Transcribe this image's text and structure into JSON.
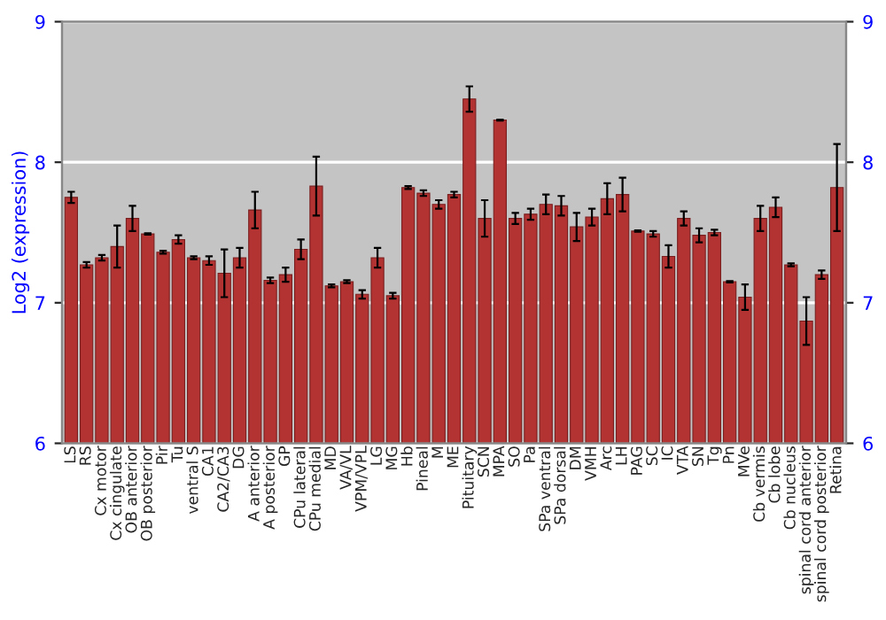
{
  "chart_data": {
    "type": "bar",
    "ylabel": "Log2 (expression)",
    "categories": [
      "LS",
      "RS",
      "Cx motor",
      "Cx cingulate",
      "OB anterior",
      "OB posterior",
      "Pir",
      "Tu",
      "ventral S",
      "CA1",
      "CA2/CA3",
      "DG",
      "A anterior",
      "A posterior",
      "GP",
      "CPu lateral",
      "CPu medial",
      "MD",
      "VA/VL",
      "VPM/VPL",
      "LG",
      "MG",
      "Hb",
      "Pineal",
      "M",
      "ME",
      "Pituitary",
      "SCN",
      "MPA",
      "SO",
      "Pa",
      "SPa ventral",
      "SPa dorsal",
      "DM",
      "VMH",
      "Arc",
      "LH",
      "PAG",
      "SC",
      "IC",
      "VTA",
      "SN",
      "Tg",
      "Pn",
      "MVe",
      "Cb vermis",
      "Cb lobe",
      "Cb nucleus",
      "spinal cord anterior",
      "spinal cord posterior",
      "Retina"
    ],
    "values": [
      7.75,
      7.27,
      7.32,
      7.4,
      7.6,
      7.49,
      7.36,
      7.45,
      7.32,
      7.3,
      7.21,
      7.32,
      7.66,
      7.16,
      7.2,
      7.38,
      7.83,
      7.12,
      7.15,
      7.06,
      7.32,
      7.05,
      7.82,
      7.78,
      7.7,
      7.77,
      8.45,
      7.6,
      8.3,
      7.6,
      7.63,
      7.7,
      7.69,
      7.54,
      7.61,
      7.74,
      7.77,
      7.51,
      7.49,
      7.33,
      7.6,
      7.48,
      7.5,
      7.15,
      7.04,
      7.6,
      7.68,
      7.27,
      6.87,
      7.2,
      7.82
    ],
    "errors": [
      0.04,
      0.02,
      0.02,
      0.15,
      0.09,
      0.005,
      0.01,
      0.03,
      0.01,
      0.03,
      0.17,
      0.07,
      0.13,
      0.02,
      0.05,
      0.07,
      0.21,
      0.01,
      0.01,
      0.03,
      0.07,
      0.02,
      0.01,
      0.02,
      0.03,
      0.02,
      0.09,
      0.13,
      0.003,
      0.04,
      0.04,
      0.07,
      0.07,
      0.1,
      0.06,
      0.11,
      0.12,
      0.005,
      0.02,
      0.08,
      0.05,
      0.05,
      0.02,
      0.005,
      0.09,
      0.09,
      0.07,
      0.01,
      0.17,
      0.03,
      0.31
    ],
    "color": "#b33333",
    "ylim": [
      6,
      9
    ],
    "yticks": [
      6,
      7,
      8,
      9
    ],
    "y2lim": [
      6,
      9
    ],
    "y2ticks": [
      6,
      7,
      8,
      9
    ],
    "grid": "y",
    "legend": false
  }
}
